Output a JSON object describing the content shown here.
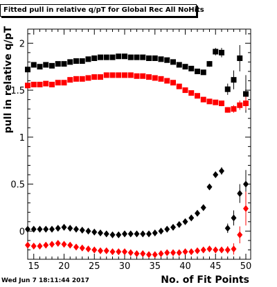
{
  "title": "Fitted pull in relative q/pT for Global Rec All NoHits",
  "timestamp": "Wed Jun  7 18:11:44 2017",
  "chart_data": {
    "type": "scatter",
    "title": "Fitted pull in relative q/pT for Global Rec All NoHits",
    "xlabel": "No. of Fit Points",
    "ylabel": "pull in relative q/pT",
    "xlim": [
      14,
      50.8
    ],
    "ylim": [
      -0.3,
      2.15
    ],
    "x_ticks": [
      15,
      20,
      25,
      30,
      35,
      40,
      45,
      50
    ],
    "y_ticks": [
      0,
      0.5,
      1,
      1.5,
      2
    ],
    "x_tick_labels": [
      "15",
      "20",
      "25",
      "30",
      "35",
      "40",
      "45",
      "50"
    ],
    "y_tick_labels": [
      "0",
      "0.5",
      "1",
      "1.5",
      "2"
    ],
    "grid": false,
    "series": [
      {
        "marker": "square",
        "color": "#000000",
        "x": [
          14,
          15,
          16,
          17,
          18,
          19,
          20,
          21,
          22,
          23,
          24,
          25,
          26,
          27,
          28,
          29,
          30,
          31,
          32,
          33,
          34,
          35,
          36,
          37,
          38,
          39,
          40,
          41,
          42,
          43,
          44,
          45,
          46,
          47,
          48,
          49,
          50
        ],
        "y": [
          1.72,
          1.77,
          1.75,
          1.77,
          1.76,
          1.78,
          1.78,
          1.8,
          1.81,
          1.81,
          1.83,
          1.84,
          1.85,
          1.85,
          1.85,
          1.86,
          1.86,
          1.85,
          1.85,
          1.85,
          1.84,
          1.84,
          1.83,
          1.82,
          1.8,
          1.77,
          1.75,
          1.73,
          1.7,
          1.69,
          1.78,
          1.91,
          1.9,
          1.51,
          1.61,
          1.84,
          1.46
        ],
        "err": [
          0.01,
          0.01,
          0.01,
          0.01,
          0.01,
          0.01,
          0.01,
          0.01,
          0.01,
          0.01,
          0.01,
          0.01,
          0.01,
          0.01,
          0.01,
          0.01,
          0.01,
          0.01,
          0.01,
          0.01,
          0.01,
          0.01,
          0.01,
          0.01,
          0.01,
          0.01,
          0.01,
          0.01,
          0.01,
          0.01,
          0.03,
          0.04,
          0.05,
          0.06,
          0.1,
          0.14,
          0.2
        ]
      },
      {
        "marker": "square",
        "color": "#ff0000",
        "x": [
          14,
          15,
          16,
          17,
          18,
          19,
          20,
          21,
          22,
          23,
          24,
          25,
          26,
          27,
          28,
          29,
          30,
          31,
          32,
          33,
          34,
          35,
          36,
          37,
          38,
          39,
          40,
          41,
          42,
          43,
          44,
          45,
          46,
          47,
          48,
          49,
          50
        ],
        "y": [
          1.55,
          1.56,
          1.56,
          1.57,
          1.56,
          1.58,
          1.58,
          1.61,
          1.62,
          1.62,
          1.63,
          1.64,
          1.64,
          1.66,
          1.66,
          1.66,
          1.66,
          1.66,
          1.65,
          1.65,
          1.64,
          1.63,
          1.62,
          1.6,
          1.58,
          1.54,
          1.5,
          1.47,
          1.44,
          1.4,
          1.38,
          1.37,
          1.36,
          1.29,
          1.3,
          1.34,
          1.36
        ],
        "err": [
          0.01,
          0.01,
          0.01,
          0.01,
          0.01,
          0.01,
          0.01,
          0.01,
          0.01,
          0.01,
          0.01,
          0.01,
          0.01,
          0.01,
          0.01,
          0.01,
          0.01,
          0.01,
          0.01,
          0.01,
          0.01,
          0.01,
          0.01,
          0.01,
          0.01,
          0.01,
          0.01,
          0.01,
          0.01,
          0.01,
          0.02,
          0.02,
          0.03,
          0.03,
          0.04,
          0.05,
          0.07
        ]
      },
      {
        "marker": "diamond",
        "color": "#000000",
        "x": [
          14,
          15,
          16,
          17,
          18,
          19,
          20,
          21,
          22,
          23,
          24,
          25,
          26,
          27,
          28,
          29,
          30,
          31,
          32,
          33,
          34,
          35,
          36,
          37,
          38,
          39,
          40,
          41,
          42,
          43,
          44,
          45,
          46,
          47,
          48,
          49,
          50
        ],
        "y": [
          0.02,
          0.02,
          0.02,
          0.02,
          0.02,
          0.03,
          0.04,
          0.03,
          0.02,
          0.01,
          0.0,
          -0.01,
          -0.02,
          -0.03,
          -0.04,
          -0.04,
          -0.03,
          -0.03,
          -0.03,
          -0.03,
          -0.03,
          -0.02,
          0.0,
          0.02,
          0.04,
          0.07,
          0.1,
          0.14,
          0.19,
          0.25,
          0.47,
          0.6,
          0.64,
          0.03,
          0.14,
          0.4,
          0.5
        ],
        "err": [
          0.005,
          0.005,
          0.005,
          0.005,
          0.005,
          0.005,
          0.005,
          0.005,
          0.005,
          0.005,
          0.005,
          0.005,
          0.005,
          0.005,
          0.005,
          0.005,
          0.005,
          0.005,
          0.005,
          0.005,
          0.005,
          0.005,
          0.005,
          0.005,
          0.005,
          0.005,
          0.005,
          0.005,
          0.01,
          0.01,
          0.02,
          0.03,
          0.04,
          0.05,
          0.08,
          0.1,
          0.15
        ]
      },
      {
        "marker": "diamond",
        "color": "#ff0000",
        "x": [
          14,
          15,
          16,
          17,
          18,
          19,
          20,
          21,
          22,
          23,
          24,
          25,
          26,
          27,
          28,
          29,
          30,
          31,
          32,
          33,
          34,
          35,
          36,
          37,
          38,
          39,
          40,
          41,
          42,
          43,
          44,
          45,
          46,
          47,
          48,
          49,
          50
        ],
        "y": [
          -0.15,
          -0.16,
          -0.16,
          -0.15,
          -0.14,
          -0.13,
          -0.14,
          -0.15,
          -0.17,
          -0.18,
          -0.19,
          -0.2,
          -0.21,
          -0.21,
          -0.22,
          -0.22,
          -0.22,
          -0.23,
          -0.24,
          -0.24,
          -0.25,
          -0.25,
          -0.24,
          -0.23,
          -0.23,
          -0.23,
          -0.22,
          -0.22,
          -0.21,
          -0.2,
          -0.19,
          -0.2,
          -0.2,
          -0.2,
          -0.19,
          -0.04,
          0.24
        ],
        "err": [
          0.005,
          0.005,
          0.005,
          0.005,
          0.005,
          0.005,
          0.005,
          0.005,
          0.005,
          0.005,
          0.005,
          0.005,
          0.005,
          0.005,
          0.005,
          0.005,
          0.005,
          0.005,
          0.005,
          0.005,
          0.005,
          0.005,
          0.005,
          0.005,
          0.005,
          0.005,
          0.005,
          0.005,
          0.005,
          0.01,
          0.01,
          0.02,
          0.03,
          0.04,
          0.06,
          0.09,
          0.18
        ]
      }
    ]
  }
}
